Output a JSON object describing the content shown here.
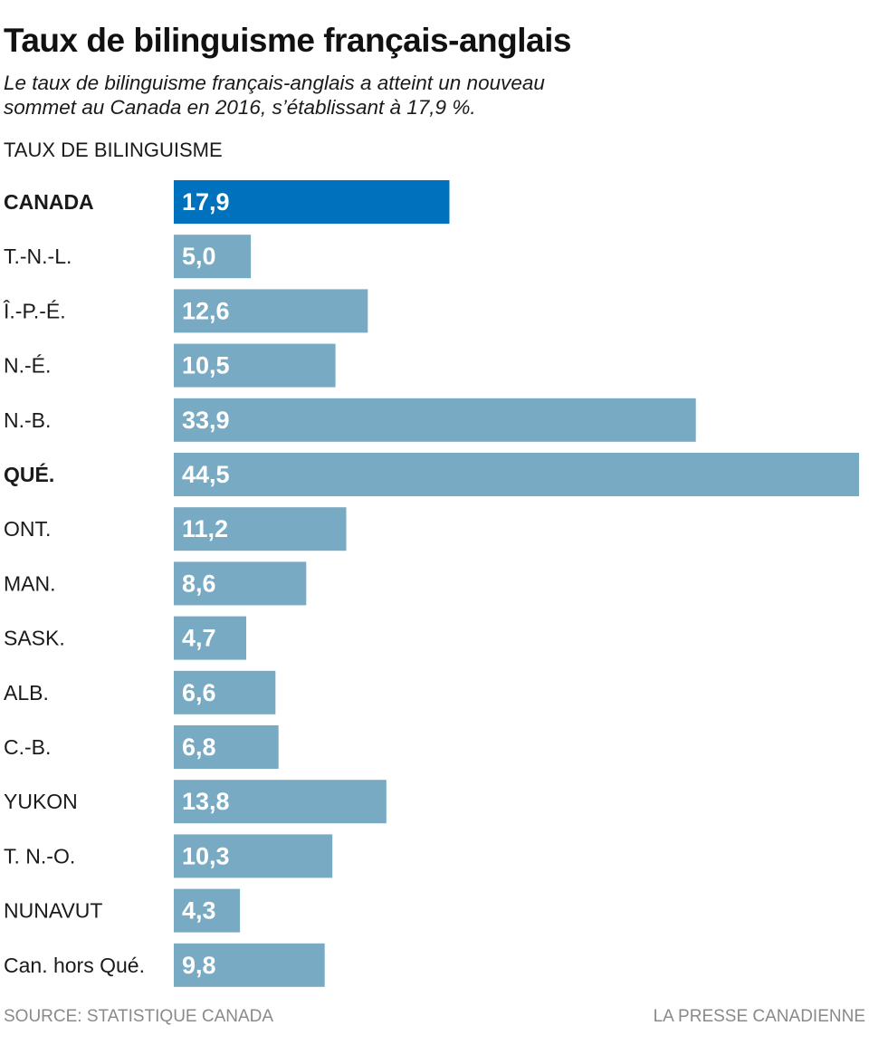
{
  "chart_data": {
    "type": "bar",
    "orientation": "horizontal",
    "title": "Taux de bilinguisme français-anglais",
    "subtitle": "Le taux de bilinguisme français-anglais a atteint un nouveau sommet au Canada en 2016, s’établissant à 17,9 %.",
    "measure_label": "TAUX DE BILINGUISME",
    "categories": [
      "CANADA",
      "T.-N.-L.",
      "Î.-P.-É.",
      "N.-É.",
      "N.-B.",
      "QUÉ.",
      "ONT.",
      "MAN.",
      "SASK.",
      "ALB.",
      "C.-B.",
      "YUKON",
      "T. N.-O.",
      "NUNAVUT",
      "Can. hors Qué."
    ],
    "values": [
      17.9,
      5.0,
      12.6,
      10.5,
      33.9,
      44.5,
      11.2,
      8.6,
      4.7,
      6.6,
      6.8,
      13.8,
      10.3,
      4.3,
      9.8
    ],
    "value_labels": [
      "17,9",
      "5,0",
      "12,6",
      "10,5",
      "33,9",
      "44,5",
      "11,2",
      "8,6",
      "4,7",
      "6,6",
      "6,8",
      "13,8",
      "10,3",
      "4,3",
      "9,8"
    ],
    "bold_categories": [
      "CANADA",
      "QUÉ."
    ],
    "highlight_category": "CANADA",
    "xlim": [
      0,
      44.5
    ],
    "grid": false,
    "legend": "none",
    "colors": {
      "highlight_bar": "#0071bc",
      "bar": "#78aac3",
      "value_text": "#ffffff",
      "category_text": "#1a1a1a",
      "footer_text": "#8a8a8a"
    }
  },
  "footer": {
    "source": "SOURCE: STATISTIQUE CANADA",
    "credit": "LA PRESSE CANADIENNE"
  }
}
